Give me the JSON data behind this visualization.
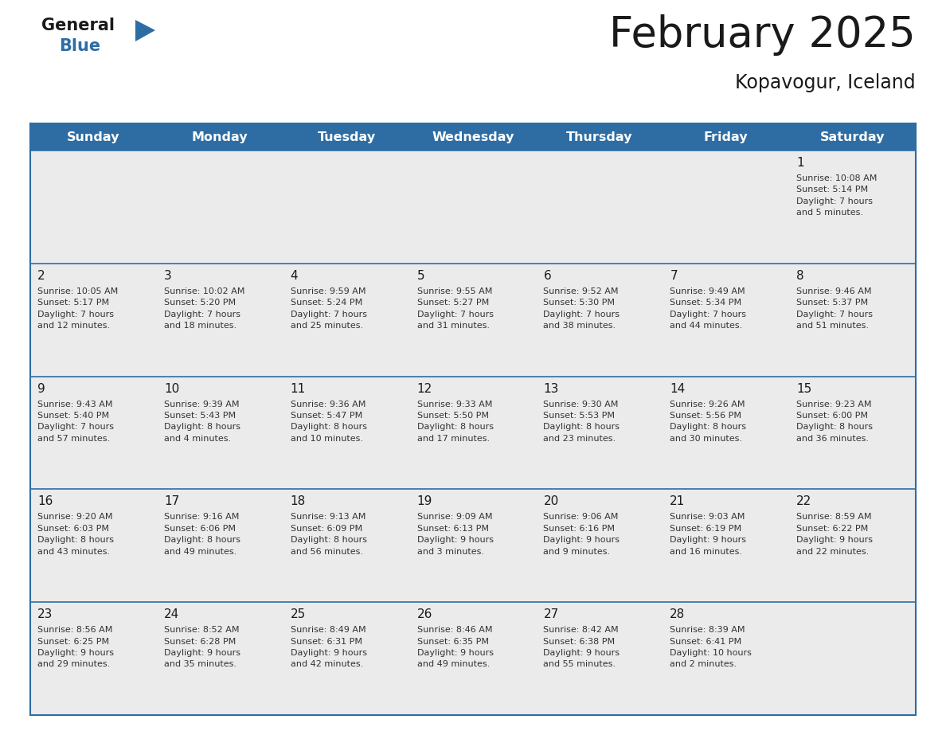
{
  "title": "February 2025",
  "subtitle": "Kopavogur, Iceland",
  "header_color": "#2e6da4",
  "header_text_color": "#ffffff",
  "cell_bg_odd": "#ebebeb",
  "cell_bg_even": "#f5f5f5",
  "border_color": "#2e6da4",
  "title_color": "#1a1a1a",
  "subtitle_color": "#1a1a1a",
  "day_number_color": "#1a1a1a",
  "cell_text_color": "#333333",
  "days_of_week": [
    "Sunday",
    "Monday",
    "Tuesday",
    "Wednesday",
    "Thursday",
    "Friday",
    "Saturday"
  ],
  "logo_general_color": "#1a1a1a",
  "logo_blue_color": "#2e6da4",
  "logo_triangle_color": "#2e6da4",
  "weeks": [
    [
      {
        "day": null,
        "info": null
      },
      {
        "day": null,
        "info": null
      },
      {
        "day": null,
        "info": null
      },
      {
        "day": null,
        "info": null
      },
      {
        "day": null,
        "info": null
      },
      {
        "day": null,
        "info": null
      },
      {
        "day": 1,
        "info": "Sunrise: 10:08 AM\nSunset: 5:14 PM\nDaylight: 7 hours\nand 5 minutes."
      }
    ],
    [
      {
        "day": 2,
        "info": "Sunrise: 10:05 AM\nSunset: 5:17 PM\nDaylight: 7 hours\nand 12 minutes."
      },
      {
        "day": 3,
        "info": "Sunrise: 10:02 AM\nSunset: 5:20 PM\nDaylight: 7 hours\nand 18 minutes."
      },
      {
        "day": 4,
        "info": "Sunrise: 9:59 AM\nSunset: 5:24 PM\nDaylight: 7 hours\nand 25 minutes."
      },
      {
        "day": 5,
        "info": "Sunrise: 9:55 AM\nSunset: 5:27 PM\nDaylight: 7 hours\nand 31 minutes."
      },
      {
        "day": 6,
        "info": "Sunrise: 9:52 AM\nSunset: 5:30 PM\nDaylight: 7 hours\nand 38 minutes."
      },
      {
        "day": 7,
        "info": "Sunrise: 9:49 AM\nSunset: 5:34 PM\nDaylight: 7 hours\nand 44 minutes."
      },
      {
        "day": 8,
        "info": "Sunrise: 9:46 AM\nSunset: 5:37 PM\nDaylight: 7 hours\nand 51 minutes."
      }
    ],
    [
      {
        "day": 9,
        "info": "Sunrise: 9:43 AM\nSunset: 5:40 PM\nDaylight: 7 hours\nand 57 minutes."
      },
      {
        "day": 10,
        "info": "Sunrise: 9:39 AM\nSunset: 5:43 PM\nDaylight: 8 hours\nand 4 minutes."
      },
      {
        "day": 11,
        "info": "Sunrise: 9:36 AM\nSunset: 5:47 PM\nDaylight: 8 hours\nand 10 minutes."
      },
      {
        "day": 12,
        "info": "Sunrise: 9:33 AM\nSunset: 5:50 PM\nDaylight: 8 hours\nand 17 minutes."
      },
      {
        "day": 13,
        "info": "Sunrise: 9:30 AM\nSunset: 5:53 PM\nDaylight: 8 hours\nand 23 minutes."
      },
      {
        "day": 14,
        "info": "Sunrise: 9:26 AM\nSunset: 5:56 PM\nDaylight: 8 hours\nand 30 minutes."
      },
      {
        "day": 15,
        "info": "Sunrise: 9:23 AM\nSunset: 6:00 PM\nDaylight: 8 hours\nand 36 minutes."
      }
    ],
    [
      {
        "day": 16,
        "info": "Sunrise: 9:20 AM\nSunset: 6:03 PM\nDaylight: 8 hours\nand 43 minutes."
      },
      {
        "day": 17,
        "info": "Sunrise: 9:16 AM\nSunset: 6:06 PM\nDaylight: 8 hours\nand 49 minutes."
      },
      {
        "day": 18,
        "info": "Sunrise: 9:13 AM\nSunset: 6:09 PM\nDaylight: 8 hours\nand 56 minutes."
      },
      {
        "day": 19,
        "info": "Sunrise: 9:09 AM\nSunset: 6:13 PM\nDaylight: 9 hours\nand 3 minutes."
      },
      {
        "day": 20,
        "info": "Sunrise: 9:06 AM\nSunset: 6:16 PM\nDaylight: 9 hours\nand 9 minutes."
      },
      {
        "day": 21,
        "info": "Sunrise: 9:03 AM\nSunset: 6:19 PM\nDaylight: 9 hours\nand 16 minutes."
      },
      {
        "day": 22,
        "info": "Sunrise: 8:59 AM\nSunset: 6:22 PM\nDaylight: 9 hours\nand 22 minutes."
      }
    ],
    [
      {
        "day": 23,
        "info": "Sunrise: 8:56 AM\nSunset: 6:25 PM\nDaylight: 9 hours\nand 29 minutes."
      },
      {
        "day": 24,
        "info": "Sunrise: 8:52 AM\nSunset: 6:28 PM\nDaylight: 9 hours\nand 35 minutes."
      },
      {
        "day": 25,
        "info": "Sunrise: 8:49 AM\nSunset: 6:31 PM\nDaylight: 9 hours\nand 42 minutes."
      },
      {
        "day": 26,
        "info": "Sunrise: 8:46 AM\nSunset: 6:35 PM\nDaylight: 9 hours\nand 49 minutes."
      },
      {
        "day": 27,
        "info": "Sunrise: 8:42 AM\nSunset: 6:38 PM\nDaylight: 9 hours\nand 55 minutes."
      },
      {
        "day": 28,
        "info": "Sunrise: 8:39 AM\nSunset: 6:41 PM\nDaylight: 10 hours\nand 2 minutes."
      },
      {
        "day": null,
        "info": null
      }
    ]
  ]
}
